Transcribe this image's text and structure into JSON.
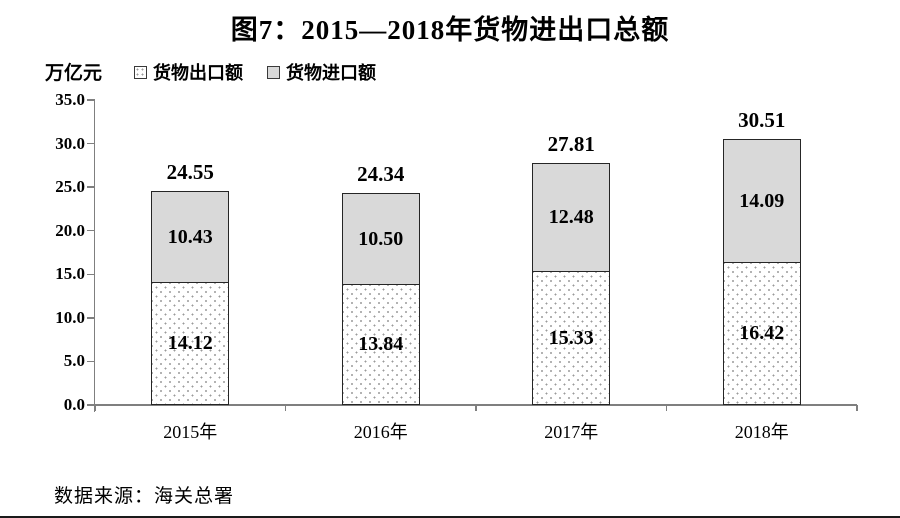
{
  "page": {
    "title": "图7：2015—2018年货物进出口总额",
    "unit_label": "万亿元",
    "source": "数据来源：海关总署"
  },
  "chart_data": {
    "type": "bar",
    "stacked": true,
    "title": "图7：2015—2018年货物进出口总额",
    "ylabel_unit": "万亿元",
    "categories": [
      "2015年",
      "2016年",
      "2017年",
      "2018年"
    ],
    "series": [
      {
        "name": "货物出口额",
        "style": "dotted-white",
        "values": [
          14.12,
          13.84,
          15.33,
          16.42
        ]
      },
      {
        "name": "货物进口额",
        "style": "light-gray",
        "values": [
          10.43,
          10.5,
          12.48,
          14.09
        ]
      }
    ],
    "totals": [
      24.55,
      24.34,
      27.81,
      30.51
    ],
    "ylim": [
      0,
      35
    ],
    "ytick_step": 5,
    "ytick_labels": [
      "0.0",
      "5.0",
      "10.0",
      "15.0",
      "20.0",
      "25.0",
      "30.0",
      "35.0"
    ],
    "grid": false,
    "legend_position": "top-left",
    "colors": {
      "import_fill": "#d9d9d9",
      "export_fill": "#ffffff",
      "export_dot": "#9a9a9a",
      "bar_border": "#262626",
      "axis": "#7f7f7f",
      "text": "#000000"
    }
  }
}
